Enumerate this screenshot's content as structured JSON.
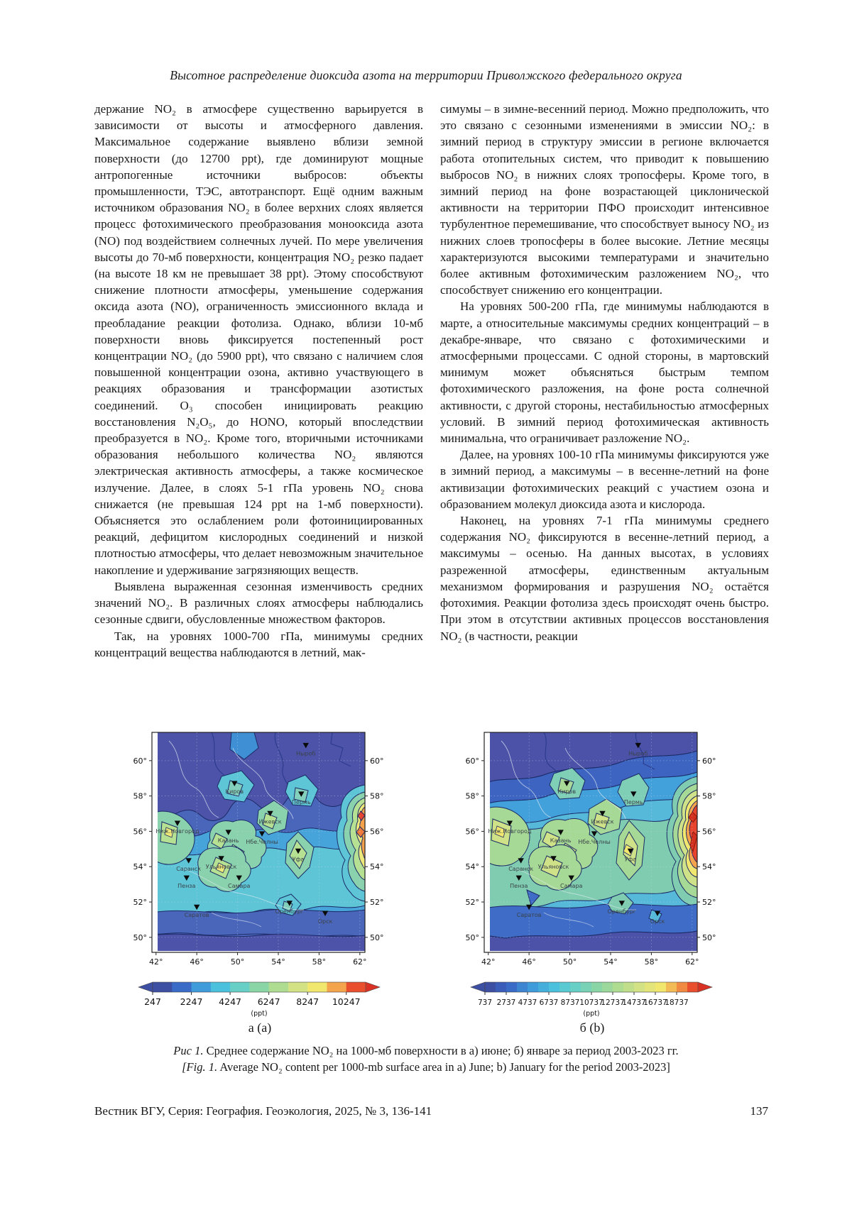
{
  "page": {
    "header_title": "Высотное распределение диоксида азота на территории Приволжского федерального округа",
    "footer_left": "Вестник ВГУ, Серия: География. Геоэкология, 2025, № 3, 136-141",
    "footer_page": "137"
  },
  "article": {
    "left_column": [
      {
        "text": "держание NO₂ в атмосфере существенно варьируется в зависимости от высоты и атмосферного давления. Максимальное содержание выявлено вблизи земной поверхности (до 12700 ppt), где доминируют мощные антропогенные источники выбросов: объекты промышленности, ТЭС, автотранспорт. Ещё одним важным источником образования NO₂ в более верхних слоях является процесс фотохимического преобразования монооксида азота (NO) под воздействием солнечных лучей. По мере увеличения высоты до 70-мб поверхности, концентрация NO₂ резко падает (на высоте 18 км не превышает 38 ppt). Этому способствуют снижение плотности атмосферы, уменьшение содержания оксида азота (NO), ограниченность эмиссионного вклада и преобладание реакции фотолиза. Однако, вблизи 10-мб поверхности вновь фиксируется постепенный рост концентрации NO₂ (до 5900 ppt), что связано с наличием слоя повышенной концентрации озона, активно участвующего в реакциях образования и трансформации азотистых соединений. O₃ способен инициировать реакцию восстановления N₂O₅, до HONO, который впоследствии преобразуется в NO₂. Кроме того, вторичными источниками образования небольшого количества NO₂ являются электрическая активность атмосферы, а также космическое излучение. Далее, в слоях 5-1 гПа уровень NO₂ снова снижается (не превышая 124 ppt на 1-мб поверхности). Объясняется это ослаблением роли фотоинициированных реакций, дефицитом кислородных соединений и низкой плотностью атмосферы, что делает невозможным значительное накопление и удерживание загрязняющих веществ."
      },
      {
        "text": "Выявлена выраженная сезонная изменчивость средних значений NO₂. В различных слоях атмосферы наблюдались сезонные сдвиги, обусловленные множеством факторов."
      },
      {
        "text": "Так, на уровнях 1000-700 гПа, минимумы средних концентраций вещества наблюдаются в летний, мак-"
      }
    ],
    "right_column": [
      {
        "text": "симумы – в зимне-весенний период. Можно предположить, что это связано с сезонными изменениями в эмиссии NO₂: в зимний период в структуру эмиссии в регионе включается работа отопительных систем, что приводит к повышению выбросов NO₂ в нижних слоях тропосферы. Кроме того, в зимний период на фоне возрастающей циклонической активности на территории ПФО происходит интенсивное турбулентное перемешивание, что способствует выносу NO₂ из нижних слоев тропосферы в более высокие. Летние месяцы характеризуются высокими температурами и значительно более активным фотохимическим разложением NO₂, что способствует снижению его концентрации."
      },
      {
        "text": "На уровнях 500-200 гПа, где минимумы наблюдаются в марте, а относительные максимумы средних концентраций – в декабре-январе, что связано с фотохимическими и атмосферными процессами. С одной стороны, в мартовский минимум может объясняться быстрым темпом фотохимического разложения, на фоне роста солнечной активности, с другой стороны, нестабильностью атмосферных условий. В зимний период фотохимическая активность минимальна, что ограничивает разложение NO₂."
      },
      {
        "text": "Далее, на уровнях 100-10 гПа минимумы фиксируются уже в зимний период, а максимумы – в весенне-летний на фоне активизации фотохимических реакций с участием озона и образованием молекул диоксида азота и кислорода."
      },
      {
        "text": "Наконец, на уровнях 7-1 гПа минимумы среднего содержания NO₂ фиксируются в весенне-летний период, а максимумы – осенью. На данных высотах, в условиях разреженной атмосферы, единственным актуальным механизмом формирования и разрушения NO₂ остаётся фотохимия. Реакции фотолиза здесь происходят очень быстро. При этом в отсутствии активных процессов восстановления NO₂ (в частности, реакции"
      }
    ]
  },
  "figure": {
    "sublabel_a": "а (a)",
    "sublabel_b": "б (b)",
    "caption_ru_label": "Рис 1.",
    "caption_ru_text": "Среднее содержание NO₂ на 1000-мб поверхности в а) июне; б) январе за период 2003-2023 гг.",
    "caption_en_label": "[Fig. 1.",
    "caption_en_text": "Average NO₂ content per 1000-mb surface area in a) June; b) January for the period 2003-2023]"
  },
  "chart_data": [
    {
      "type": "heatmap",
      "subtype": "filled-contour-map",
      "label": "а (a)",
      "month": "июнь",
      "variable": "среднее содержание NO₂",
      "units": "ppt",
      "x_ticks": [
        "42°",
        "46°",
        "50°",
        "54°",
        "58°",
        "62°"
      ],
      "y_ticks": [
        "60°",
        "58°",
        "56°",
        "54°",
        "52°",
        "50°"
      ],
      "x_range_deg": [
        42,
        62
      ],
      "y_range_deg": [
        50,
        60
      ],
      "value_min_label": "247",
      "value_max_label": "10247",
      "colorbar": {
        "unit": "(ppt)",
        "labels": [
          "247",
          "2247",
          "4247",
          "6247",
          "8247",
          "10247"
        ],
        "colors": [
          "#3d4fa2",
          "#3a6cc7",
          "#3f9bd9",
          "#4cc1dd",
          "#68cfc6",
          "#8ad5a6",
          "#aedc91",
          "#d4e286",
          "#f1e76e",
          "#f4a44c",
          "#e94e2d"
        ],
        "arrow_right": "#d93124"
      },
      "cities": [
        {
          "name": "Ныроб",
          "lon": 56.7,
          "lat": 60.7
        },
        {
          "name": "Киров",
          "lon": 49.7,
          "lat": 58.55
        },
        {
          "name": "Пермь",
          "lon": 56.25,
          "lat": 57.95
        },
        {
          "name": "Ижевск",
          "lon": 53.2,
          "lat": 56.85
        },
        {
          "name": "Ниж.Новгород",
          "lon": 44.1,
          "lat": 56.3
        },
        {
          "name": "Казань",
          "lon": 49.1,
          "lat": 55.78
        },
        {
          "name": "Нбе.Челны",
          "lon": 52.4,
          "lat": 55.7
        },
        {
          "name": "Уфа",
          "lon": 55.95,
          "lat": 54.72
        },
        {
          "name": "Ульяновск",
          "lon": 48.4,
          "lat": 54.3
        },
        {
          "name": "Саранск",
          "lon": 45.2,
          "lat": 54.18
        },
        {
          "name": "Пенза",
          "lon": 45.0,
          "lat": 53.2
        },
        {
          "name": "Самара",
          "lon": 50.15,
          "lat": 53.2
        },
        {
          "name": "Саратов",
          "lon": 46.0,
          "lat": 51.55
        },
        {
          "name": "Оренбург",
          "lon": 55.1,
          "lat": 51.77
        },
        {
          "name": "Орск",
          "lon": 58.6,
          "lat": 51.2
        }
      ]
    },
    {
      "type": "heatmap",
      "subtype": "filled-contour-map",
      "label": "б (b)",
      "month": "январь",
      "variable": "среднее содержание NO₂",
      "units": "ppt",
      "x_ticks": [
        "42°",
        "46°",
        "50°",
        "54°",
        "58°",
        "62°"
      ],
      "y_ticks": [
        "60°",
        "58°",
        "56°",
        "54°",
        "52°",
        "50°"
      ],
      "x_range_deg": [
        42,
        62
      ],
      "y_range_deg": [
        50,
        60
      ],
      "value_min_label": "737",
      "value_max_label": "18737",
      "colorbar": {
        "unit": "(ppt)",
        "labels": [
          "737",
          "2737",
          "4737",
          "6737",
          "8737",
          "10737",
          "12737",
          "14737",
          "16737",
          "18737"
        ],
        "colors": [
          "#3d4fa2",
          "#3b5dba",
          "#3a6cc7",
          "#3d84d1",
          "#3f9bd9",
          "#45aedb",
          "#4cc1dd",
          "#59c9d2",
          "#68cfc6",
          "#79d2b6",
          "#8ad5a6",
          "#9cd89b",
          "#aedc91",
          "#c1df8b",
          "#d4e286",
          "#e3e57a",
          "#f1e76e",
          "#f3bb55",
          "#f08a42",
          "#e94e2d"
        ],
        "arrow_right": "#d93124"
      },
      "cities": [
        {
          "name": "Ныроб",
          "lon": 56.7,
          "lat": 60.7
        },
        {
          "name": "Киров",
          "lon": 49.7,
          "lat": 58.55
        },
        {
          "name": "Пермь",
          "lon": 56.25,
          "lat": 57.95
        },
        {
          "name": "Ижевск",
          "lon": 53.2,
          "lat": 56.85
        },
        {
          "name": "Ниж.Новгород",
          "lon": 44.1,
          "lat": 56.3
        },
        {
          "name": "Казань",
          "lon": 49.1,
          "lat": 55.78
        },
        {
          "name": "Нбе.Челны",
          "lon": 52.4,
          "lat": 55.7
        },
        {
          "name": "Уфа",
          "lon": 55.95,
          "lat": 54.72
        },
        {
          "name": "Ульяновск",
          "lon": 48.4,
          "lat": 54.3
        },
        {
          "name": "Саранск",
          "lon": 45.2,
          "lat": 54.18
        },
        {
          "name": "Пенза",
          "lon": 45.0,
          "lat": 53.2
        },
        {
          "name": "Самара",
          "lon": 50.15,
          "lat": 53.2
        },
        {
          "name": "Саратов",
          "lon": 46.0,
          "lat": 51.55
        },
        {
          "name": "Оренбург",
          "lon": 55.1,
          "lat": 51.77
        },
        {
          "name": "Орск",
          "lon": 58.6,
          "lat": 51.2
        }
      ]
    }
  ]
}
